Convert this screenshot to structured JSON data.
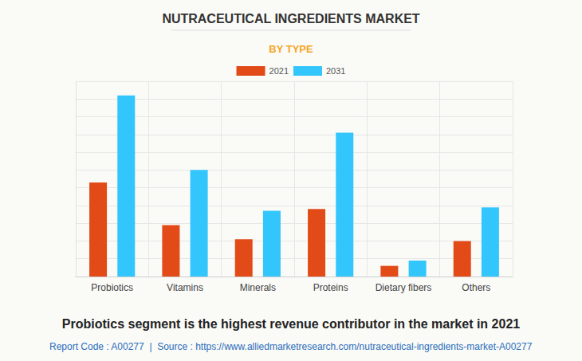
{
  "chart_data": {
    "type": "bar",
    "title": "NUTRACEUTICAL INGREDIENTS MARKET",
    "subtitle": "BY TYPE",
    "categories": [
      "Probiotics",
      "Vitamins",
      "Minerals",
      "Proteins",
      "Dietary fibers",
      "Others"
    ],
    "series": [
      {
        "name": "2021",
        "color": "#e24a17",
        "values": [
          5.3,
          2.9,
          2.1,
          3.8,
          0.6,
          2.0
        ]
      },
      {
        "name": "2031",
        "color": "#33c6fd",
        "values": [
          10.2,
          6.0,
          3.7,
          8.1,
          0.9,
          3.9
        ]
      }
    ],
    "ylim": [
      0,
      11
    ],
    "yticks": [
      0,
      1,
      2,
      3,
      4,
      5,
      6,
      7,
      8,
      9,
      10,
      11
    ],
    "grid": true,
    "legend": "top",
    "tick_labels": "x",
    "annotations": [
      "Probiotics segment is the highest revenue contributor in the market in 2021",
      "Report Code : A00277  |  Source : https://www.alliedmarketresearch.com/nutraceutical-ingredients-market-A00277"
    ]
  }
}
